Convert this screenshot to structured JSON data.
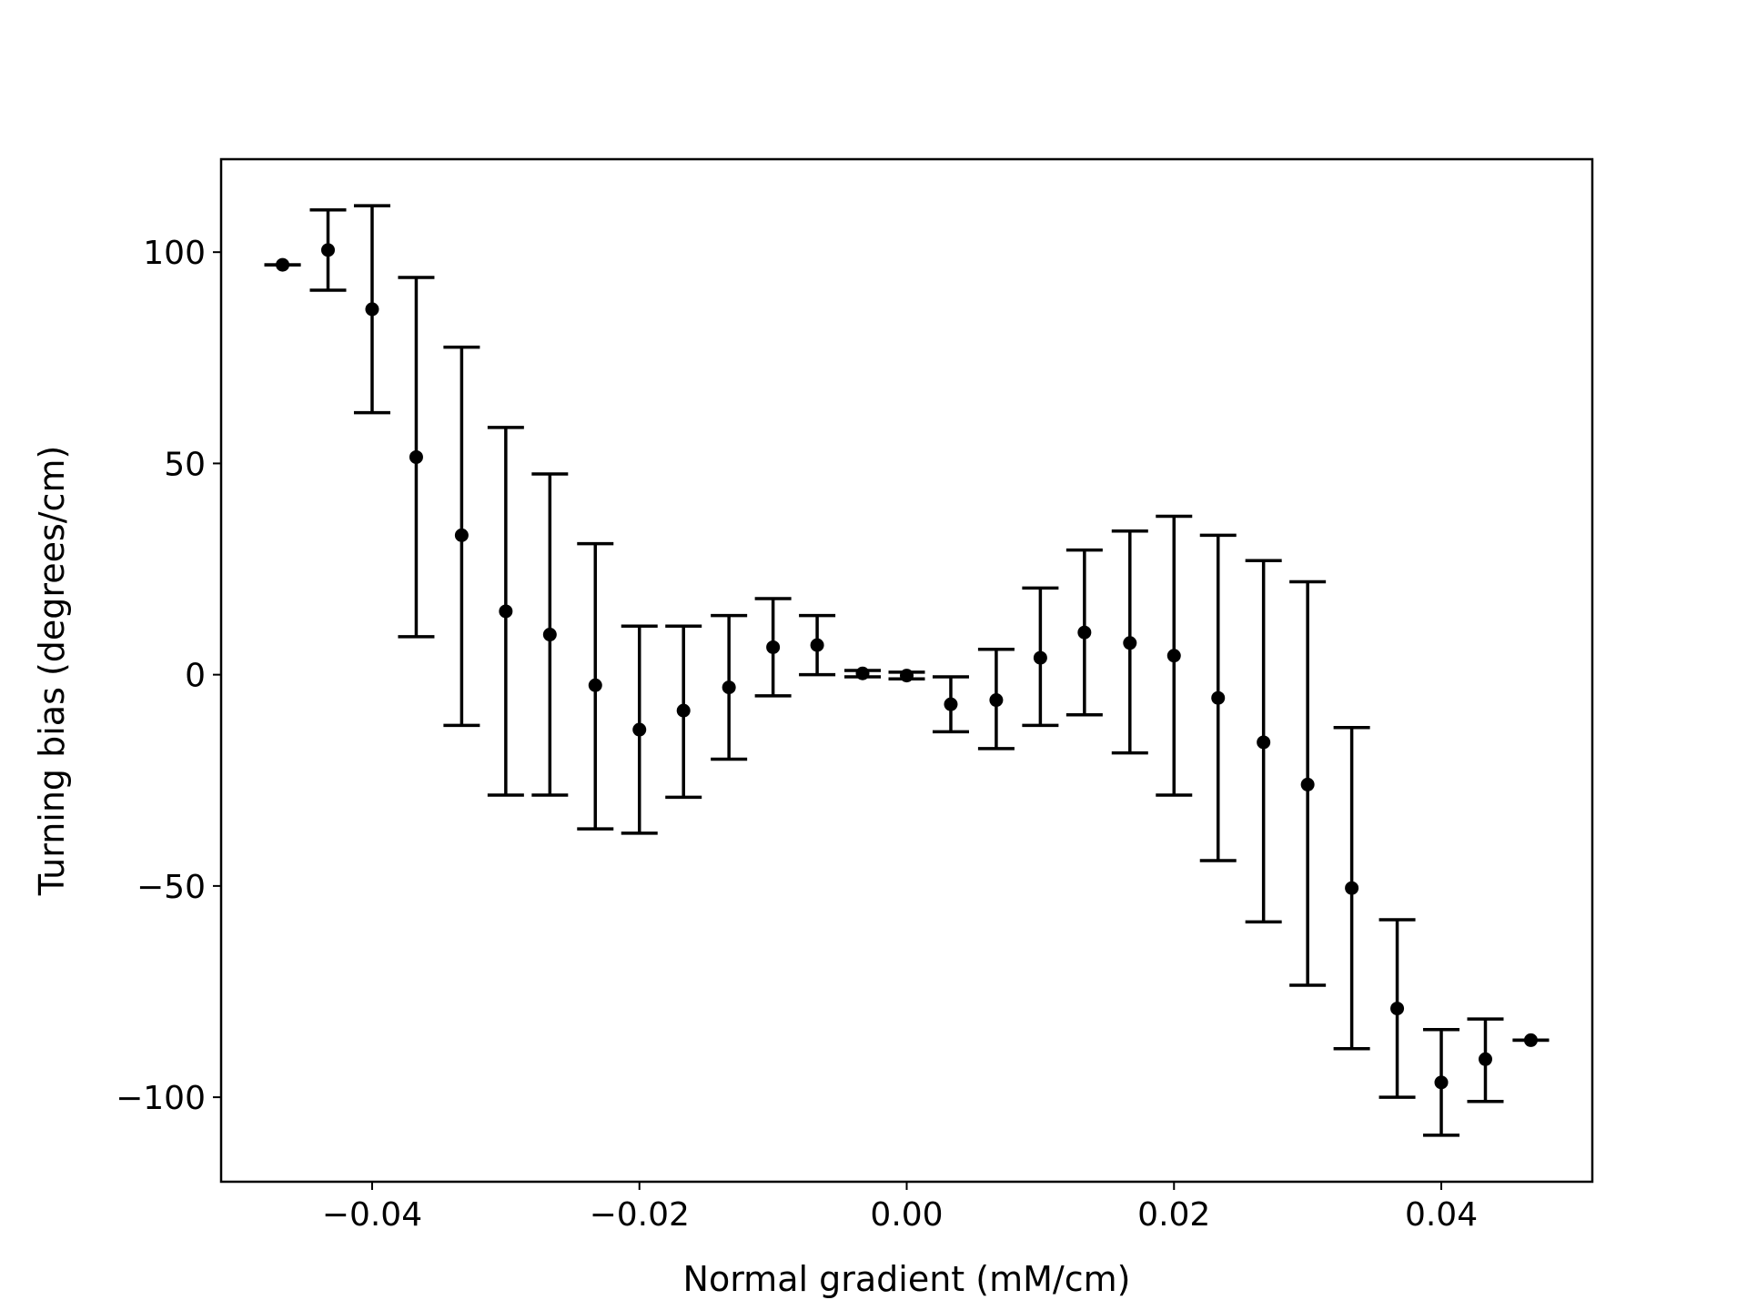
{
  "chart_data": {
    "type": "scatter",
    "title": "",
    "xlabel": "Normal gradient (mM/cm)",
    "ylabel": "Turning bias (degrees/cm)",
    "xlim": [
      -0.0513,
      0.0513
    ],
    "ylim": [
      -120,
      122
    ],
    "grid": false,
    "x_ticks": [
      {
        "value": -0.04,
        "label": "−0.04"
      },
      {
        "value": -0.02,
        "label": "−0.02"
      },
      {
        "value": 0.0,
        "label": "0.00"
      },
      {
        "value": 0.02,
        "label": "0.02"
      },
      {
        "value": 0.04,
        "label": "0.04"
      }
    ],
    "y_ticks": [
      {
        "value": 100,
        "label": "100"
      },
      {
        "value": 50,
        "label": "50"
      },
      {
        "value": 0,
        "label": "0"
      },
      {
        "value": -50,
        "label": "−50"
      },
      {
        "value": -100,
        "label": "−100"
      }
    ],
    "marker_color": "#000000",
    "series": [
      {
        "points": [
          {
            "x": -0.0467,
            "y": 97,
            "lo": 97,
            "hi": 97
          },
          {
            "x": -0.0433,
            "y": 100.5,
            "lo": 91,
            "hi": 110
          },
          {
            "x": -0.04,
            "y": 86.5,
            "lo": 62,
            "hi": 111
          },
          {
            "x": -0.0367,
            "y": 51.5,
            "lo": 9,
            "hi": 94
          },
          {
            "x": -0.0333,
            "y": 33,
            "lo": -12,
            "hi": 77.5
          },
          {
            "x": -0.03,
            "y": 15,
            "lo": -28.5,
            "hi": 58.5
          },
          {
            "x": -0.0267,
            "y": 9.5,
            "lo": -28.5,
            "hi": 47.5
          },
          {
            "x": -0.0233,
            "y": -2.5,
            "lo": -36.5,
            "hi": 31
          },
          {
            "x": -0.02,
            "y": -13,
            "lo": -37.5,
            "hi": 11.5
          },
          {
            "x": -0.0167,
            "y": -8.5,
            "lo": -29,
            "hi": 11.5
          },
          {
            "x": -0.0133,
            "y": -3,
            "lo": -20,
            "hi": 14
          },
          {
            "x": -0.01,
            "y": 6.5,
            "lo": -5,
            "hi": 18
          },
          {
            "x": -0.0067,
            "y": 7,
            "lo": 0,
            "hi": 14
          },
          {
            "x": -0.0033,
            "y": 0.3,
            "lo": -0.5,
            "hi": 1
          },
          {
            "x": 0.0,
            "y": -0.2,
            "lo": -1,
            "hi": 0.6
          },
          {
            "x": 0.0033,
            "y": -7,
            "lo": -13.5,
            "hi": -0.5
          },
          {
            "x": 0.0067,
            "y": -6,
            "lo": -17.5,
            "hi": 6
          },
          {
            "x": 0.01,
            "y": 4,
            "lo": -12,
            "hi": 20.5
          },
          {
            "x": 0.0133,
            "y": 10,
            "lo": -9.5,
            "hi": 29.5
          },
          {
            "x": 0.0167,
            "y": 7.5,
            "lo": -18.5,
            "hi": 34
          },
          {
            "x": 0.02,
            "y": 4.5,
            "lo": -28.5,
            "hi": 37.5
          },
          {
            "x": 0.0233,
            "y": -5.5,
            "lo": -44,
            "hi": 33
          },
          {
            "x": 0.0267,
            "y": -16,
            "lo": -58.5,
            "hi": 27
          },
          {
            "x": 0.03,
            "y": -26,
            "lo": -73.5,
            "hi": 22
          },
          {
            "x": 0.0333,
            "y": -50.5,
            "lo": -88.5,
            "hi": -12.5
          },
          {
            "x": 0.0367,
            "y": -79,
            "lo": -100,
            "hi": -58
          },
          {
            "x": 0.04,
            "y": -96.5,
            "lo": -109,
            "hi": -84
          },
          {
            "x": 0.0433,
            "y": -91,
            "lo": -101,
            "hi": -81.5
          },
          {
            "x": 0.0467,
            "y": -86.5,
            "lo": -86.5,
            "hi": -86.5
          }
        ]
      }
    ]
  }
}
